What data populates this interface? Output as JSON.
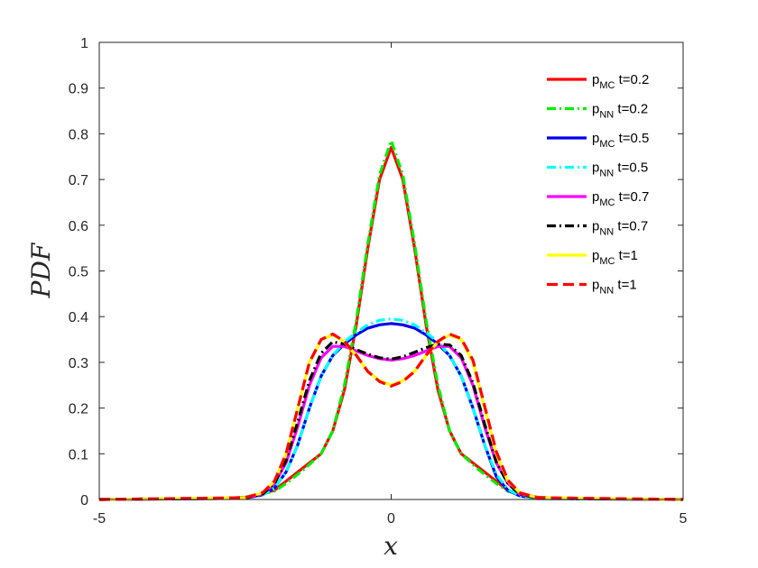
{
  "chart_data": {
    "type": "line",
    "xlabel": "x",
    "ylabel": "PDF",
    "xlim": [
      -5,
      5
    ],
    "ylim": [
      0,
      1
    ],
    "xticks": [
      "-5",
      "0",
      "5"
    ],
    "yticks": [
      "0",
      "0.1",
      "0.2",
      "0.3",
      "0.4",
      "0.5",
      "0.6",
      "0.7",
      "0.8",
      "0.9",
      "1"
    ],
    "grid": false,
    "legend_position": "top-right",
    "series": [
      {
        "name": "p_MC t=0.2",
        "label_main": "p",
        "label_sub": "MC",
        "label_rest": " t=0.2",
        "color": "#ff0000",
        "style": "solid",
        "x": [
          -5,
          -3,
          -2.5,
          -2,
          -1.8,
          -1.5,
          -1.2,
          -1,
          -0.8,
          -0.6,
          -0.4,
          -0.2,
          0,
          0.2,
          0.4,
          0.6,
          0.8,
          1,
          1.2,
          1.5,
          1.8,
          2,
          2.5,
          3,
          5
        ],
        "y": [
          0,
          0.002,
          0.005,
          0.02,
          0.04,
          0.07,
          0.1,
          0.15,
          0.24,
          0.38,
          0.55,
          0.7,
          0.77,
          0.7,
          0.55,
          0.38,
          0.24,
          0.15,
          0.1,
          0.07,
          0.04,
          0.02,
          0.005,
          0.002,
          0
        ]
      },
      {
        "name": "p_NN t=0.2",
        "label_main": "p",
        "label_sub": "NN",
        "label_rest": " t=0.2",
        "color": "#00ee00",
        "style": "dashdot",
        "x": [
          -5,
          -3,
          -2.5,
          -2,
          -1.8,
          -1.5,
          -1.2,
          -1,
          -0.8,
          -0.6,
          -0.4,
          -0.2,
          0,
          0.2,
          0.4,
          0.6,
          0.8,
          1,
          1.2,
          1.5,
          1.8,
          2,
          2.5,
          3,
          5
        ],
        "y": [
          0,
          0.002,
          0.005,
          0.018,
          0.035,
          0.065,
          0.1,
          0.15,
          0.25,
          0.39,
          0.56,
          0.71,
          0.785,
          0.71,
          0.56,
          0.39,
          0.25,
          0.15,
          0.1,
          0.065,
          0.035,
          0.018,
          0.005,
          0.002,
          0
        ]
      },
      {
        "name": "p_MC t=0.5",
        "label_main": "p",
        "label_sub": "MC",
        "label_rest": " t=0.5",
        "color": "#0000ee",
        "style": "solid",
        "x": [
          -5,
          -2.5,
          -2.2,
          -2,
          -1.8,
          -1.6,
          -1.4,
          -1.2,
          -1,
          -0.8,
          -0.6,
          -0.4,
          -0.2,
          0,
          0.2,
          0.4,
          0.6,
          0.8,
          1,
          1.2,
          1.4,
          1.6,
          1.8,
          2,
          2.2,
          2.5,
          5
        ],
        "y": [
          0,
          0.003,
          0.01,
          0.025,
          0.06,
          0.12,
          0.2,
          0.27,
          0.315,
          0.34,
          0.36,
          0.375,
          0.382,
          0.385,
          0.382,
          0.375,
          0.36,
          0.34,
          0.315,
          0.27,
          0.2,
          0.12,
          0.05,
          0.02,
          0.008,
          0.002,
          0
        ]
      },
      {
        "name": "p_NN t=0.5",
        "label_main": "p",
        "label_sub": "NN",
        "label_rest": " t=0.5",
        "color": "#00ffff",
        "style": "dashdot",
        "x": [
          -5,
          -2.5,
          -2.2,
          -2,
          -1.8,
          -1.6,
          -1.4,
          -1.2,
          -1,
          -0.8,
          -0.6,
          -0.4,
          -0.2,
          0,
          0.2,
          0.4,
          0.6,
          0.8,
          1,
          1.2,
          1.4,
          1.6,
          1.8,
          2,
          2.2,
          2.5,
          5
        ],
        "y": [
          0,
          0.003,
          0.01,
          0.025,
          0.06,
          0.12,
          0.2,
          0.27,
          0.315,
          0.345,
          0.365,
          0.382,
          0.392,
          0.395,
          0.392,
          0.382,
          0.365,
          0.345,
          0.315,
          0.27,
          0.2,
          0.12,
          0.055,
          0.022,
          0.008,
          0.002,
          0
        ]
      },
      {
        "name": "p_MC t=0.7",
        "label_main": "p",
        "label_sub": "MC",
        "label_rest": " t=0.7",
        "color": "#ff00ff",
        "style": "solid",
        "x": [
          -5,
          -2.5,
          -2.2,
          -2,
          -1.8,
          -1.6,
          -1.4,
          -1.2,
          -1,
          -0.8,
          -0.6,
          -0.4,
          -0.2,
          0,
          0.2,
          0.4,
          0.6,
          0.8,
          1,
          1.2,
          1.4,
          1.6,
          1.8,
          2,
          2.2,
          2.5,
          5
        ],
        "y": [
          0,
          0.003,
          0.012,
          0.035,
          0.08,
          0.16,
          0.25,
          0.31,
          0.335,
          0.335,
          0.325,
          0.315,
          0.308,
          0.305,
          0.308,
          0.315,
          0.325,
          0.335,
          0.335,
          0.31,
          0.25,
          0.16,
          0.08,
          0.035,
          0.012,
          0.003,
          0
        ]
      },
      {
        "name": "p_NN t=0.7",
        "label_main": "p",
        "label_sub": "NN",
        "label_rest": " t=0.7",
        "color": "#000000",
        "style": "dashdot",
        "x": [
          -5,
          -2.5,
          -2.2,
          -2,
          -1.8,
          -1.6,
          -1.4,
          -1.2,
          -1,
          -0.8,
          -0.6,
          -0.4,
          -0.2,
          0,
          0.2,
          0.4,
          0.6,
          0.8,
          1,
          1.2,
          1.4,
          1.6,
          1.8,
          2,
          2.2,
          2.5,
          5
        ],
        "y": [
          0,
          0.003,
          0.012,
          0.035,
          0.085,
          0.17,
          0.26,
          0.32,
          0.345,
          0.34,
          0.328,
          0.318,
          0.31,
          0.307,
          0.312,
          0.322,
          0.332,
          0.34,
          0.338,
          0.315,
          0.255,
          0.165,
          0.082,
          0.035,
          0.012,
          0.003,
          0
        ]
      },
      {
        "name": "p_MC t=1",
        "label_main": "p",
        "label_sub": "MC",
        "label_rest": " t=1",
        "color": "#ffff00",
        "style": "solid",
        "x": [
          -5,
          -2.5,
          -2.2,
          -2,
          -1.8,
          -1.6,
          -1.4,
          -1.2,
          -1,
          -0.8,
          -0.6,
          -0.4,
          -0.2,
          0,
          0.2,
          0.4,
          0.6,
          0.8,
          1,
          1.2,
          1.4,
          1.6,
          1.8,
          2,
          2.2,
          2.5,
          5
        ],
        "y": [
          0,
          0.004,
          0.015,
          0.04,
          0.1,
          0.2,
          0.3,
          0.35,
          0.36,
          0.345,
          0.315,
          0.28,
          0.26,
          0.25,
          0.26,
          0.28,
          0.315,
          0.345,
          0.36,
          0.35,
          0.3,
          0.2,
          0.1,
          0.04,
          0.015,
          0.004,
          0
        ]
      },
      {
        "name": "p_NN t=1",
        "label_main": "p",
        "label_sub": "NN",
        "label_rest": " t=1",
        "color": "#ff0000",
        "style": "dashed",
        "x": [
          -5,
          -2.5,
          -2.2,
          -2,
          -1.8,
          -1.6,
          -1.4,
          -1.2,
          -1,
          -0.8,
          -0.6,
          -0.4,
          -0.2,
          0,
          0.2,
          0.4,
          0.6,
          0.8,
          1,
          1.2,
          1.4,
          1.6,
          1.8,
          2,
          2.2,
          2.5,
          5
        ],
        "y": [
          0,
          0.004,
          0.015,
          0.04,
          0.1,
          0.2,
          0.3,
          0.35,
          0.362,
          0.346,
          0.316,
          0.28,
          0.258,
          0.248,
          0.258,
          0.28,
          0.316,
          0.346,
          0.362,
          0.352,
          0.305,
          0.205,
          0.105,
          0.042,
          0.015,
          0.004,
          0
        ]
      }
    ]
  }
}
